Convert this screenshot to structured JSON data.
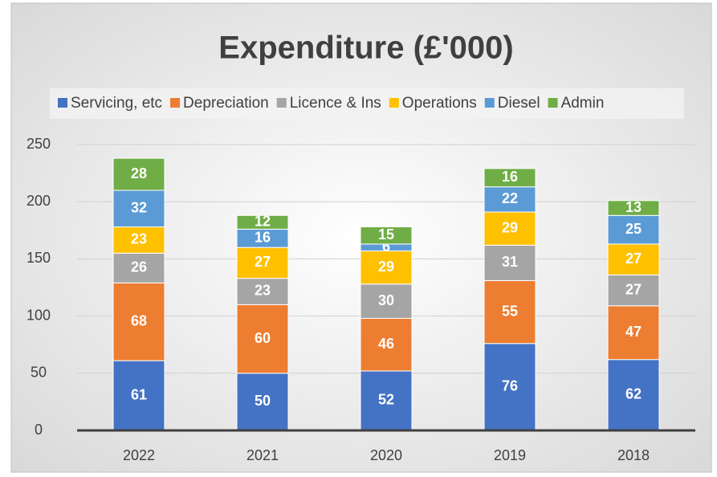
{
  "chart_data": {
    "type": "stacked_bar",
    "title": "Expenditure (£'000)",
    "categories": [
      "2022",
      "2021",
      "2020",
      "2019",
      "2018"
    ],
    "series": [
      {
        "name": "Servicing, etc",
        "color": "#4472c4",
        "values": [
          61,
          50,
          52,
          76,
          62
        ]
      },
      {
        "name": "Depreciation",
        "color": "#ed7d31",
        "values": [
          68,
          60,
          46,
          55,
          47
        ]
      },
      {
        "name": "Licence & Ins",
        "color": "#a5a5a5",
        "values": [
          26,
          23,
          30,
          31,
          27
        ]
      },
      {
        "name": "Operations",
        "color": "#ffc000",
        "values": [
          23,
          27,
          29,
          29,
          27
        ]
      },
      {
        "name": "Diesel",
        "color": "#5b9bd5",
        "values": [
          32,
          16,
          6,
          22,
          25
        ]
      },
      {
        "name": "Admin",
        "color": "#70ad47",
        "values": [
          28,
          12,
          15,
          16,
          13
        ]
      }
    ],
    "ylim": [
      0,
      250
    ],
    "yticks": [
      0,
      50,
      100,
      150,
      200,
      250
    ],
    "grid": true,
    "legend": "top"
  }
}
